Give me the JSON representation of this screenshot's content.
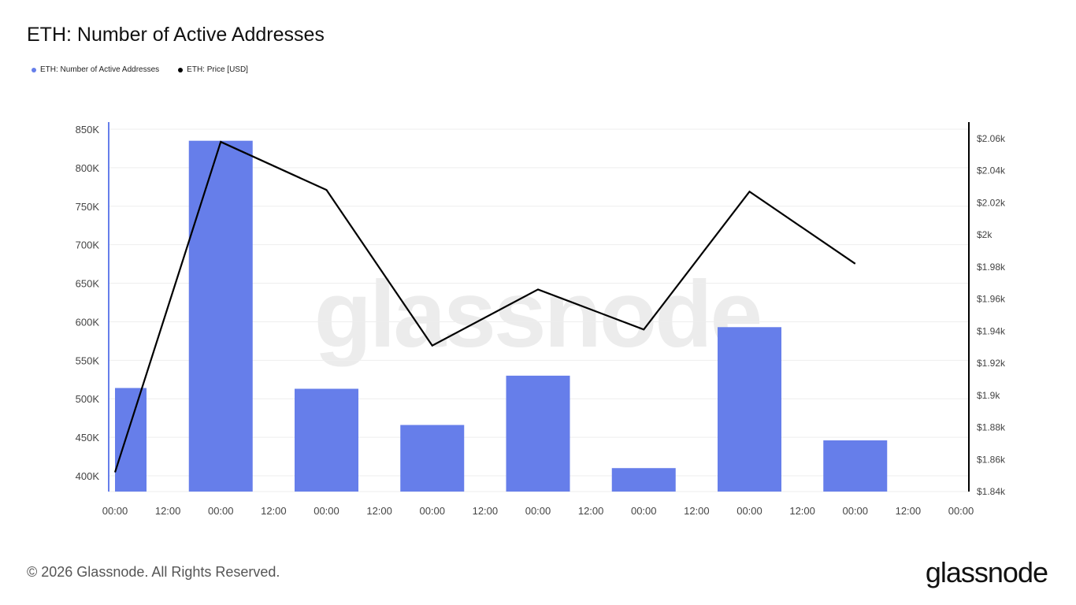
{
  "title": "ETH: Number of Active Addresses",
  "legend": [
    {
      "label": "ETH: Number of Active Addresses",
      "color": "#667eea"
    },
    {
      "label": "ETH: Price [USD]",
      "color": "#000000"
    }
  ],
  "footer": {
    "copyright": "© 2026 Glassnode. All Rights Reserved.",
    "brand": "glassnode",
    "watermark": "glassnode"
  },
  "chart_data": {
    "type": "bar",
    "x_ticks": [
      "00:00",
      "12:00",
      "00:00",
      "12:00",
      "00:00",
      "12:00",
      "00:00",
      "12:00",
      "00:00",
      "12:00",
      "00:00",
      "12:00",
      "00:00",
      "12:00",
      "00:00",
      "12:00",
      "00:00"
    ],
    "bar_color": "#667eea",
    "line_color": "#000000",
    "y_left": {
      "range": [
        380000,
        850000
      ],
      "ticks": [
        400000,
        450000,
        500000,
        550000,
        600000,
        650000,
        700000,
        750000,
        800000,
        850000
      ],
      "tick_labels": [
        "400K",
        "450K",
        "500K",
        "550K",
        "600K",
        "650K",
        "700K",
        "750K",
        "800K",
        "850K"
      ]
    },
    "y_right": {
      "range": [
        1840,
        2062
      ],
      "ticks": [
        1840,
        1860,
        1880,
        1900,
        1920,
        1940,
        1960,
        1980,
        2000,
        2020,
        2040,
        2060
      ],
      "tick_labels": [
        "$1.84k",
        "$1.86k",
        "$1.88k",
        "$1.9k",
        "$1.92k",
        "$1.94k",
        "$1.96k",
        "$1.98k",
        "$2k",
        "$2.02k",
        "$2.04k",
        "$2.06k"
      ]
    },
    "series": [
      {
        "name": "ETH: Number of Active Addresses",
        "type": "bar",
        "axis": "left",
        "x_index": [
          0,
          2,
          4,
          6,
          8,
          10,
          12,
          14
        ],
        "values": [
          514000,
          835000,
          513000,
          466000,
          530000,
          410000,
          593000,
          446000
        ]
      },
      {
        "name": "ETH: Price [USD]",
        "type": "line",
        "axis": "right",
        "x_index": [
          0,
          2,
          4,
          6,
          8,
          10,
          12,
          14
        ],
        "values": [
          1852,
          2058,
          2028,
          1931,
          1966,
          1941,
          2027,
          1982
        ]
      }
    ]
  }
}
